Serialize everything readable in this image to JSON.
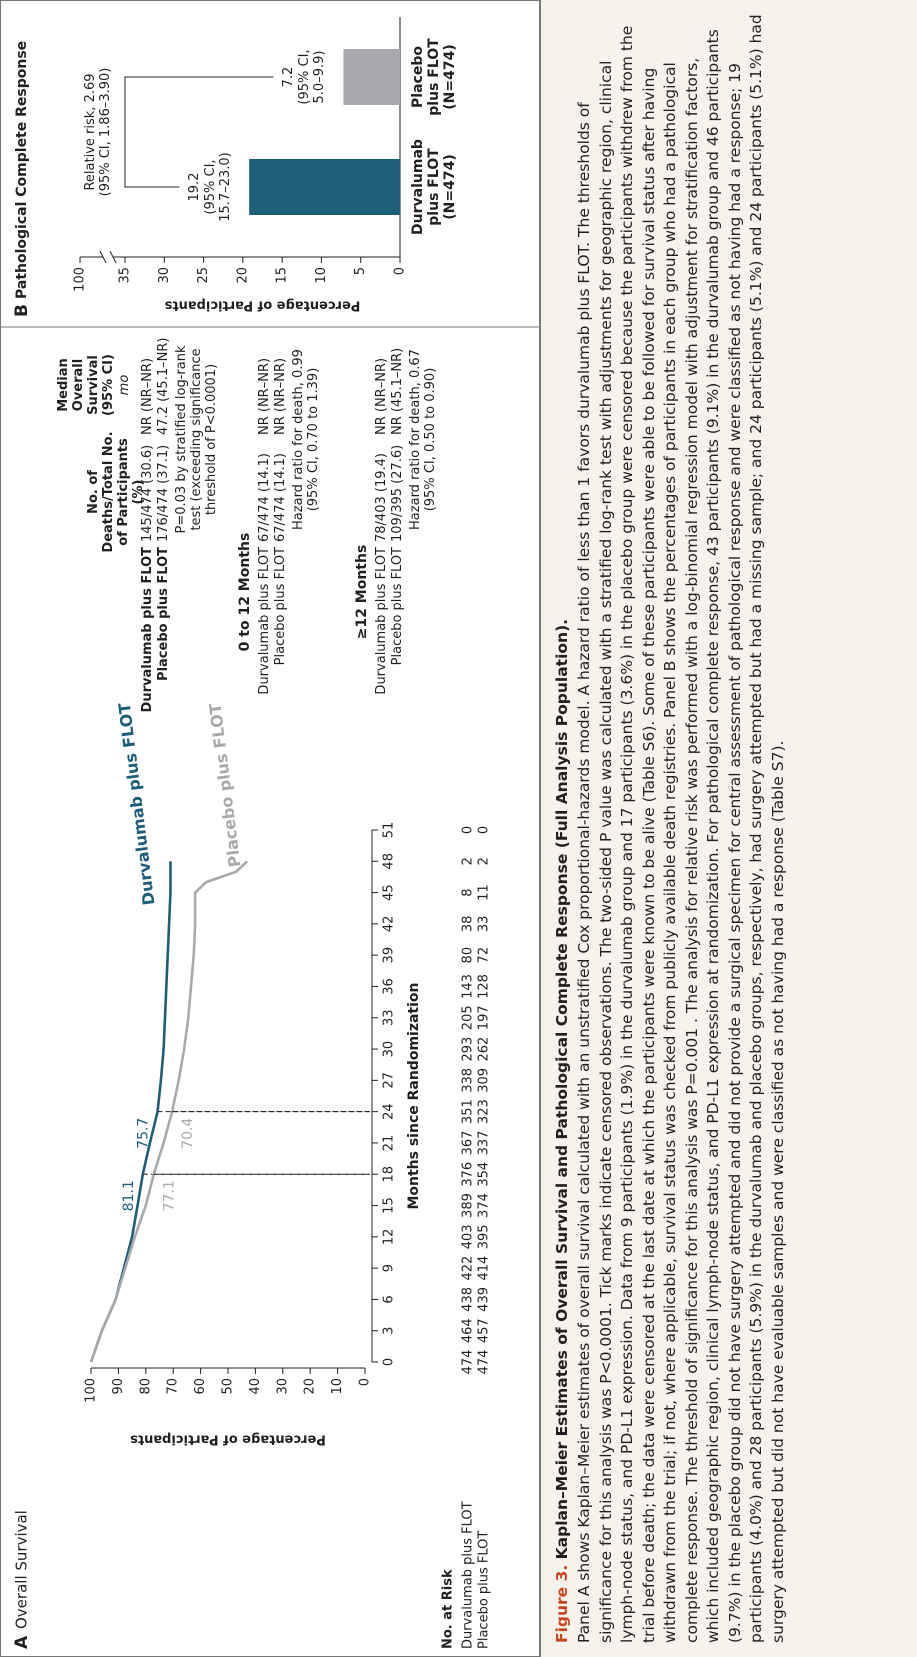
{
  "chart_data": [
    {
      "type": "line",
      "panel": "A",
      "title": "Overall Survival",
      "x_label": "Months since Randomization",
      "y_label": "Percentage of Participants",
      "x": [
        0,
        3,
        6,
        9,
        12,
        15,
        18,
        21,
        24,
        27,
        30,
        33,
        36,
        39,
        42,
        45,
        46,
        47,
        48
      ],
      "series": [
        {
          "name": "Durvalumab plus FLOT",
          "color": "#1d5e78",
          "values": [
            100,
            96,
            91,
            88,
            85,
            83,
            81.1,
            78.5,
            75.7,
            74.5,
            73.5,
            73,
            72.5,
            72,
            71.5,
            71,
            71,
            71,
            71
          ]
        },
        {
          "name": "Placebo plus FLOT",
          "color": "#a7a9ac",
          "values": [
            100,
            96,
            91,
            87.5,
            84,
            80,
            77.1,
            73.5,
            70.4,
            68,
            66,
            64.5,
            63.5,
            62.5,
            62,
            62,
            58,
            47,
            43
          ]
        }
      ],
      "marked_x": [
        18,
        24
      ],
      "xlim": [
        0,
        51
      ],
      "xticks": [
        0,
        3,
        6,
        9,
        12,
        15,
        18,
        21,
        24,
        27,
        30,
        33,
        36,
        39,
        42,
        45,
        48,
        51
      ],
      "ylim": [
        0,
        100
      ],
      "yticks": [
        0,
        10,
        20,
        30,
        40,
        50,
        60,
        70,
        80,
        90,
        100
      ],
      "risk_table": {
        "title": "No. at Risk",
        "rows": [
          {
            "name": "Durvalumab plus FLOT",
            "values": [
              474,
              464,
              438,
              422,
              403,
              389,
              376,
              367,
              351,
              338,
              293,
              205,
              143,
              80,
              38,
              8,
              2,
              0
            ]
          },
          {
            "name": "Placebo plus FLOT",
            "values": [
              474,
              457,
              439,
              414,
              395,
              374,
              354,
              337,
              323,
              309,
              262,
              197,
              128,
              72,
              33,
              11,
              2,
              0
            ]
          }
        ]
      }
    },
    {
      "type": "bar",
      "panel": "B",
      "title": "Pathological Complete Response",
      "y_label": "Percentage of Participants",
      "categories": [
        "Durvalumab plus FLOT (N=474)",
        "Placebo plus FLOT (N=474)"
      ],
      "values": [
        19.2,
        7.2
      ],
      "colors": [
        "#1d5e78",
        "#a7a9ac"
      ],
      "value_ci": [
        "(95% CI, 15.7–23.0)",
        "(95% CI, 5.0–9.9)"
      ],
      "comparison": "Relative risk, 2.69 (95% CI, 1.86–3.90)",
      "ylim": [
        0,
        100
      ],
      "yticks": [
        0,
        5,
        10,
        15,
        20,
        25,
        30,
        35,
        100
      ],
      "axis_break": true
    }
  ],
  "summary_table": {
    "headers": [
      "No. of Deaths/Total No. of Participants (%)",
      "Median Overall Survival (95% CI)"
    ],
    "unit": "mo",
    "groups": [
      {
        "rows": [
          [
            "Durvalumab plus FLOT",
            "145/474 (30.6)",
            "NR (NR–NR)"
          ],
          [
            "Placebo plus FLOT",
            "176/474 (37.1)",
            "47.2 (45.1–NR)"
          ]
        ],
        "note": "P=0.03 by stratified log-rank test (exceeding significance threshold of P<0.0001)"
      },
      {
        "title": "0 to 12 Months",
        "rows": [
          [
            "Durvalumab plus FLOT",
            "67/474 (14.1)",
            "NR (NR–NR)"
          ],
          [
            "Placebo plus FLOT",
            "67/474 (14.1)",
            "NR (NR–NR)"
          ]
        ],
        "note": "Hazard ratio for death, 0.99 (95% CI, 0.70 to 1.39)"
      },
      {
        "title": "≥12 Months",
        "rows": [
          [
            "Durvalumab plus FLOT",
            "78/403 (19.4)",
            "NR (NR–NR)"
          ],
          [
            "Placebo plus FLOT",
            "109/395 (27.6)",
            "NR (45.1–NR)"
          ]
        ],
        "note": "Hazard ratio for death, 0.67 (95% CI, 0.50 to 0.90)"
      }
    ]
  },
  "caption": {
    "label": "Figure 3.",
    "title": "Kaplan–Meier Estimates of Overall Survival and Pathological Complete Response (Full Analysis Population).",
    "text": "Panel A shows Kaplan–Meier estimates of overall survival calculated with an unstratified Cox proportional-hazards model. A hazard ratio of less than 1 favors durvalumab plus FLOT. The thresholds of significance for this analysis was P<0.0001. Tick marks indicate censored observations. The two-sided P value was calculated with a stratified log-rank test with adjustments for geographic region, clinical lymph-node status, and PD-L1 expression. Data from 9 participants (1.9%) in the durvalumab group and 17 participants (3.6%) in the placebo group were censored because the participants withdrew from the trial before death; the data were censored at the last date at which the participants were known to be alive (Table S6). Some of these participants were able to be followed for survival status after having withdrawn from the trial; if not, where applicable, survival status was checked from publicly available death registries. Panel B shows the percentages of participants in each group who had a pathological complete response. The threshold of significance for this analysis was P=0.001 . The analysis for relative risk was performed with a log-binomial regression model with adjustment for stratification factors, which included geographic region, clinical lymph-node status, and PD-L1 expression at randomization. For pathological complete response, 43 participants (9.1%) in the durvalumab group and 46 participants (9.7%) in the placebo group did not have surgery attempted and did not provide a surgical specimen for central assessment of pathological response and were classified as not having had a response; 19 participants (4.0%) and 28 participants (5.9%) in the durvalumab and placebo groups, respectively, had surgery attempted but had a missing sample; and 24 participants (5.1%) and 24 participants (5.1%) had surgery attempted but did not have evaluable samples and were classified as not having had a response (Table S7)."
  }
}
